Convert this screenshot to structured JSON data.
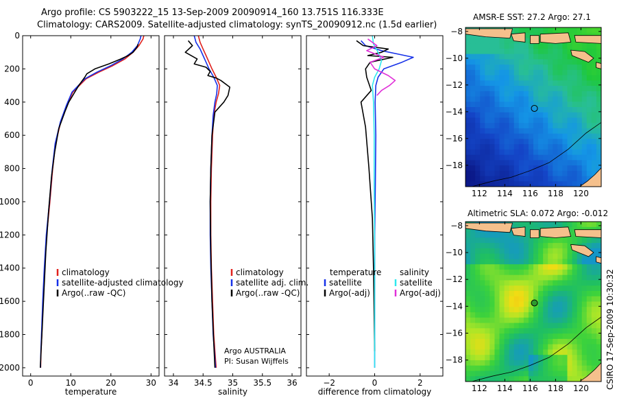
{
  "header": {
    "line1": "Argo profile: CS 5903222_15 13-Sep-2009 20090914_160 13.751S 116.333E",
    "line2": "Climatology: CARS2009. Satellite-adjusted climatology: synTS_20090912.nc (1.5d earlier)"
  },
  "credits": {
    "line1": "Argo AUSTRALIA",
    "line2": "PI: Susan Wijffels",
    "side": "CSIRO 17-Sep-2009 10:30:32"
  },
  "colors": {
    "climatology": "#e0201c",
    "satellite": "#1530e8",
    "argo": "#000000",
    "sat_salinity": "#2ee8ee",
    "argo_salinity": "#e030d8",
    "land": "#f5c08c"
  },
  "chart_data": [
    {
      "type": "line",
      "id": "temperature",
      "xlabel": "temperature",
      "ylabel": "",
      "xlim": [
        -2,
        32
      ],
      "ylim": [
        2050,
        0
      ],
      "x_ticks": [
        0,
        10,
        20,
        30
      ],
      "y_ticks": [
        0,
        200,
        400,
        600,
        800,
        1000,
        1200,
        1400,
        1600,
        1800,
        2000
      ],
      "series": [
        {
          "name": "climatology",
          "color": "#e0201c",
          "x": [
            28.2,
            28.0,
            27.0,
            25.5,
            23.5,
            20.5,
            17.0,
            13.8,
            10.5,
            9.0,
            7.5,
            6.2,
            5.5,
            4.8,
            4.0,
            3.5,
            3.1,
            2.8,
            2.6,
            2.5
          ],
          "y": [
            0,
            20,
            60,
            100,
            140,
            180,
            220,
            260,
            340,
            420,
            520,
            650,
            800,
            1000,
            1200,
            1400,
            1600,
            1800,
            1900,
            2000
          ]
        },
        {
          "name": "satellite-adjusted climatology",
          "color": "#1530e8",
          "x": [
            27.5,
            27.3,
            26.6,
            25.2,
            23.0,
            20.0,
            16.5,
            13.5,
            10.3,
            8.9,
            7.4,
            6.1,
            5.4,
            4.7,
            3.9,
            3.4,
            3.0,
            2.7,
            2.55,
            2.45
          ],
          "y": [
            0,
            20,
            60,
            100,
            140,
            180,
            220,
            260,
            340,
            420,
            520,
            650,
            800,
            1000,
            1200,
            1400,
            1600,
            1800,
            1900,
            2000
          ]
        },
        {
          "name": "Argo(..raw -QC)",
          "color": "#000000",
          "x": [
            26.8,
            26.5,
            25.5,
            24.3,
            22.5,
            19.5,
            16.0,
            14.0,
            13.5,
            12.0,
            9.5,
            8.5,
            7.0,
            6.0,
            5.2,
            4.5,
            3.8,
            3.3,
            2.9,
            2.6,
            2.4
          ],
          "y": [
            50,
            70,
            100,
            120,
            140,
            170,
            200,
            230,
            250,
            300,
            400,
            460,
            560,
            700,
            850,
            1050,
            1300,
            1550,
            1750,
            1900,
            2000
          ]
        }
      ],
      "legend": {
        "position": "middle",
        "entries": [
          "climatology",
          "satellite-adjusted climatology",
          "Argo(..raw -QC)"
        ]
      }
    },
    {
      "type": "line",
      "id": "salinity",
      "xlabel": "salinity",
      "ylabel": "",
      "xlim": [
        33.85,
        36.15
      ],
      "ylim": [
        2050,
        0
      ],
      "x_ticks": [
        34,
        34.5,
        35,
        35.5,
        36
      ],
      "x_tick_labels": [
        "34",
        "34.5",
        "35",
        "35.5",
        "36"
      ],
      "series": [
        {
          "name": "climatology",
          "color": "#e0201c",
          "x": [
            34.42,
            34.45,
            34.5,
            34.55,
            34.6,
            34.65,
            34.72,
            34.78,
            34.76,
            34.72,
            34.68,
            34.66,
            34.64,
            34.63,
            34.63,
            34.64,
            34.66,
            34.68,
            34.7,
            34.71,
            34.72
          ],
          "y": [
            0,
            40,
            80,
            120,
            160,
            200,
            250,
            300,
            350,
            400,
            480,
            600,
            800,
            1000,
            1200,
            1400,
            1600,
            1800,
            1900,
            1950,
            2000
          ]
        },
        {
          "name": "satellite adj. clim.",
          "color": "#1530e8",
          "x": [
            34.35,
            34.38,
            34.45,
            34.5,
            34.55,
            34.6,
            34.68,
            34.74,
            34.73,
            34.7,
            34.67,
            34.65,
            34.63,
            34.62,
            34.62,
            34.63,
            34.65,
            34.67,
            34.69,
            34.7,
            34.71
          ],
          "y": [
            0,
            40,
            80,
            120,
            160,
            200,
            250,
            300,
            350,
            400,
            480,
            600,
            800,
            1000,
            1200,
            1400,
            1600,
            1800,
            1900,
            1950,
            2000
          ]
        },
        {
          "name": "Argo(..raw -QC)",
          "color": "#000000",
          "x": [
            34.25,
            34.32,
            34.2,
            34.4,
            34.35,
            34.55,
            34.62,
            34.58,
            34.72,
            34.8,
            34.95,
            34.92,
            34.85,
            34.7,
            34.65,
            34.63,
            34.62,
            34.63,
            34.65,
            34.68,
            34.7
          ],
          "y": [
            30,
            60,
            100,
            140,
            170,
            190,
            215,
            240,
            255,
            270,
            310,
            360,
            400,
            460,
            600,
            800,
            1000,
            1300,
            1600,
            1850,
            2000
          ]
        }
      ],
      "legend": {
        "position": "middle",
        "entries": [
          "climatology",
          "satellite adj. clim.",
          "Argo(..raw -QC)"
        ]
      }
    },
    {
      "type": "line",
      "id": "difference",
      "xlabel": "difference from climatology",
      "ylabel": "",
      "xlim": [
        -3,
        3
      ],
      "ylim": [
        2050,
        0
      ],
      "x_ticks": [
        -2,
        0,
        2
      ],
      "series": [
        {
          "name": "temperature satellite",
          "color": "#1530e8",
          "x": [
            -0.6,
            -0.4,
            0.3,
            1.0,
            1.7,
            1.2,
            0.4,
            0.15,
            0.05,
            0.02,
            0.05,
            0.03,
            0.0,
            0.0,
            0.0,
            0.0
          ],
          "y": [
            30,
            60,
            90,
            110,
            130,
            160,
            200,
            250,
            300,
            400,
            600,
            900,
            1200,
            1500,
            1800,
            2000
          ]
        },
        {
          "name": "temperature Argo(-adj)",
          "color": "#000000",
          "x": [
            -0.8,
            -0.5,
            0.6,
            0.3,
            -0.3,
            0.8,
            -0.2,
            -0.4,
            -0.35,
            -0.15,
            -0.6,
            -0.4,
            -0.25,
            -0.1,
            -0.05,
            0.0
          ],
          "y": [
            30,
            60,
            80,
            100,
            120,
            130,
            160,
            200,
            250,
            330,
            400,
            550,
            800,
            1100,
            1400,
            1900
          ]
        },
        {
          "name": "salinity satellite",
          "color": "#2ee8ee",
          "x": [
            -0.1,
            -0.05,
            0.15,
            0.3,
            0.2,
            0.0,
            -0.1,
            -0.05,
            -0.02,
            -0.02,
            0.0,
            0.0
          ],
          "y": [
            0,
            50,
            100,
            150,
            200,
            250,
            300,
            400,
            600,
            900,
            1300,
            2000
          ]
        },
        {
          "name": "salinity Argo(-adj)",
          "color": "#e030d8",
          "x": [
            -0.3,
            0.1,
            -0.35,
            0.4,
            -0.2,
            0.0,
            0.6,
            0.9,
            0.65,
            0.3,
            0.1
          ],
          "y": [
            20,
            60,
            90,
            130,
            160,
            200,
            240,
            270,
            300,
            330,
            360
          ]
        }
      ],
      "legend": {
        "position": "middle",
        "group_titles": [
          "temperature",
          "salinity"
        ],
        "entries": [
          "satellite",
          "Argo(-adj)",
          "satellite",
          "Argo(-adj)"
        ]
      }
    },
    {
      "type": "heatmap",
      "id": "sst_map",
      "title": "AMSR-E SST: 27.2 Argo: 27.1",
      "xlim": [
        110.9,
        121.6
      ],
      "ylim": [
        -19.6,
        -7.7
      ],
      "x_ticks": [
        112,
        114,
        116,
        118,
        120
      ],
      "y_ticks": [
        -8,
        -10,
        -12,
        -14,
        -16,
        -18
      ],
      "float_position": [
        116.333,
        -13.751
      ],
      "field": "sst"
    },
    {
      "type": "heatmap",
      "id": "sla_map",
      "title": "Altimetric SLA: 0.072 Argo: -0.012",
      "xlim": [
        110.9,
        121.6
      ],
      "ylim": [
        -19.6,
        -7.7
      ],
      "x_ticks": [
        112,
        114,
        116,
        118,
        120
      ],
      "y_ticks": [
        -8,
        -10,
        -12,
        -14,
        -16,
        -18
      ],
      "float_position": [
        116.333,
        -13.751
      ],
      "field": "sla"
    }
  ]
}
